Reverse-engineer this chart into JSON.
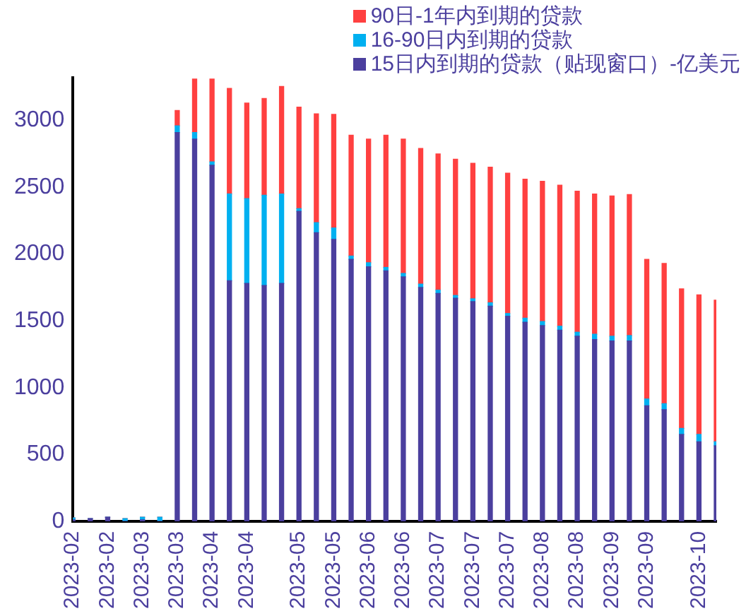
{
  "chart_data": {
    "type": "bar",
    "stacked": true,
    "legend": "top right",
    "grid": false,
    "categories": [
      "2023-02",
      null,
      "2023-02",
      null,
      "2023-03",
      null,
      "2023-03",
      null,
      "2023-04",
      null,
      "2023-04",
      null,
      null,
      "2023-05",
      null,
      "2023-05",
      null,
      "2023-06",
      null,
      "2023-06",
      null,
      "2023-07",
      null,
      "2023-07",
      null,
      "2023-07",
      null,
      "2023-08",
      null,
      "2023-08",
      null,
      "2023-09",
      null,
      "2023-09",
      null,
      null,
      "2023-10",
      null
    ],
    "ylim": [
      0,
      3320
    ],
    "yticks": [
      0,
      500,
      1000,
      1500,
      2000,
      2500,
      3000
    ],
    "series": [
      {
        "name": "15日内到期的贷款（贴现窗口）-亿美元",
        "color": "#4b3f9e",
        "values": [
          10,
          20,
          30,
          0,
          10,
          0,
          2910,
          2860,
          2665,
          1800,
          1780,
          1765,
          1780,
          2320,
          2160,
          2110,
          1960,
          1905,
          1875,
          1830,
          1750,
          1705,
          1670,
          1645,
          1610,
          1535,
          1490,
          1465,
          1430,
          1385,
          1360,
          1350,
          1350,
          865,
          835,
          650,
          595,
          565
        ]
      },
      {
        "name": "16-90日内到期的贷款",
        "color": "#00b0f0",
        "values": [
          15,
          0,
          0,
          20,
          20,
          30,
          50,
          50,
          25,
          650,
          635,
          675,
          670,
          20,
          75,
          85,
          25,
          30,
          25,
          25,
          25,
          25,
          20,
          20,
          25,
          20,
          30,
          30,
          30,
          30,
          40,
          35,
          40,
          50,
          45,
          45,
          55,
          30
        ]
      },
      {
        "name": "90日-1年内到期的贷款",
        "color": "#ff4040",
        "values": [
          0,
          0,
          0,
          0,
          0,
          0,
          115,
          400,
          620,
          790,
          715,
          725,
          805,
          760,
          815,
          850,
          905,
          925,
          990,
          1005,
          1015,
          1020,
          1020,
          1015,
          1015,
          1050,
          1040,
          1050,
          1055,
          1055,
          1050,
          1050,
          1055,
          1045,
          1050,
          1045,
          1045,
          1060
        ]
      }
    ]
  }
}
